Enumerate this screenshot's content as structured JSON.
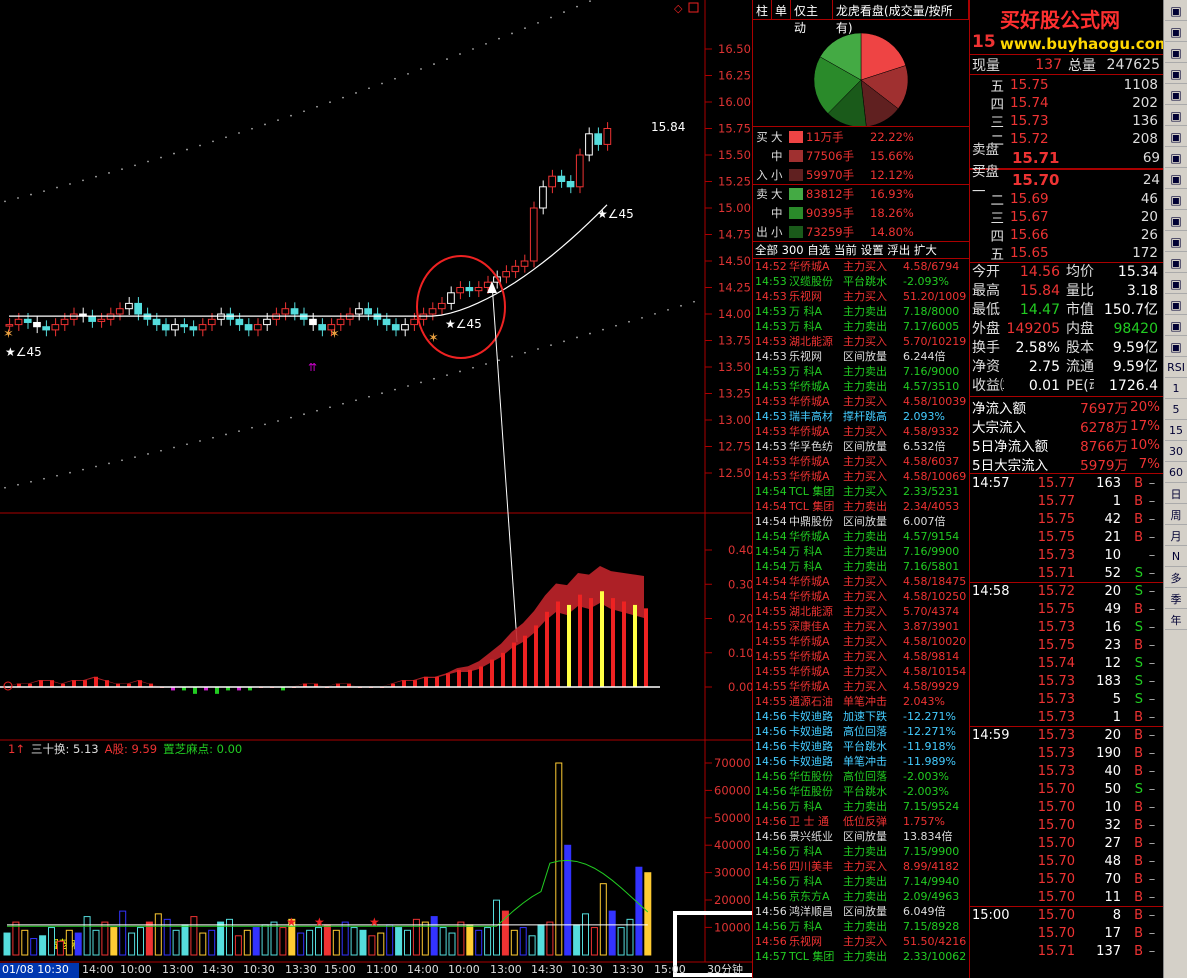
{
  "chart": {
    "price_axis": [
      "16.50",
      "16.25",
      "16.00",
      "15.75",
      "15.50",
      "15.25",
      "15.00",
      "14.75",
      "14.50",
      "14.25",
      "14.00",
      "13.75",
      "13.50",
      "13.25",
      "13.00",
      "12.75",
      "12.50"
    ],
    "macd_axis": [
      "0.40",
      "0.30",
      "0.20",
      "0.10",
      "0.00"
    ],
    "vol_axis": [
      "70000",
      "60000",
      "50000",
      "40000",
      "30000",
      "20000",
      "10000"
    ],
    "last_price_label": "15.84",
    "annotations": [
      "★∠45",
      "★∠45",
      "★∠45"
    ],
    "indicator_line": {
      "prefix": "1↑",
      "a": "三十换: 5.13",
      "b": "A股: 9.59",
      "c": "置芝麻点: 0.00",
      "overlay": "置芝麻"
    },
    "time_axis": [
      "01/08 10:30",
      "14:00",
      "10:00",
      "13:00",
      "14:30",
      "10:30",
      "13:30",
      "15:00",
      "11:00",
      "14:00",
      "10:00",
      "13:00",
      "14:30",
      "10:30",
      "13:30",
      "15:00"
    ],
    "period": "30分钟",
    "macd_values": [
      0.0,
      0.01,
      0.01,
      0.02,
      0.02,
      0.01,
      0.02,
      0.02,
      0.03,
      0.02,
      0.01,
      0.01,
      0.02,
      0.01,
      0.0,
      -0.01,
      -0.01,
      -0.02,
      -0.01,
      -0.02,
      -0.01,
      -0.01,
      -0.01,
      0.0,
      0.0,
      -0.01,
      0.0,
      0.01,
      0.01,
      0.0,
      0.01,
      0.01,
      0.0,
      0.0,
      0.0,
      0.01,
      0.02,
      0.02,
      0.03,
      0.03,
      0.04,
      0.05,
      0.05,
      0.06,
      0.08,
      0.1,
      0.13,
      0.15,
      0.18,
      0.22,
      0.25,
      0.24,
      0.27,
      0.26,
      0.28,
      0.26,
      0.25,
      0.24,
      0.23
    ],
    "vol_values": [
      8000,
      12000,
      9000,
      6000,
      7000,
      10000,
      5000,
      9000,
      8000,
      14000,
      9000,
      12000,
      10000,
      16000,
      8000,
      10000,
      12000,
      15000,
      13000,
      9000,
      11000,
      14000,
      8000,
      9000,
      12000,
      13000,
      7000,
      9000,
      10000,
      11000,
      12000,
      10000,
      13000,
      8000,
      9000,
      10000,
      11000,
      9000,
      12000,
      10000,
      9000,
      7000,
      8000,
      11000,
      10000,
      9000,
      13000,
      12000,
      14000,
      10000,
      8000,
      12000,
      11000,
      9000,
      10000,
      20000,
      16000,
      9000,
      10000,
      7000,
      11000,
      12000,
      70000,
      40000,
      11000,
      15000,
      10000,
      26000,
      16000,
      10000,
      13000,
      32000,
      30000
    ]
  },
  "panel": {
    "tabs": [
      "柱",
      "单",
      "仅主动",
      "龙虎看盘(成交量/按所有)"
    ],
    "flow": [
      {
        "side": "买",
        "size": "大",
        "amount": "11万手",
        "pct": "22.22%",
        "color": "#ee4444"
      },
      {
        "side": "",
        "size": "中",
        "amount": "77506手",
        "pct": "15.66%",
        "color": "#a03030"
      },
      {
        "side": "入",
        "size": "小",
        "amount": "59970手",
        "pct": "12.12%",
        "color": "#602020"
      },
      {
        "side": "卖",
        "size": "大",
        "amount": "83812手",
        "pct": "16.93%",
        "color": "#44aa44"
      },
      {
        "side": "",
        "size": "中",
        "amount": "90395手",
        "pct": "18.26%",
        "color": "#2a8a2a"
      },
      {
        "side": "出",
        "size": "小",
        "amount": "73259手",
        "pct": "14.80%",
        "color": "#1a5a1a"
      }
    ],
    "filter_tabs": "全部 300 自选 当前 设置 浮出 扩大",
    "news": [
      [
        "14:52",
        "华侨城A",
        "主力买入",
        "4.58/6794",
        "r"
      ],
      [
        "14:53",
        "汉缆股份",
        "平台跳水",
        "-2.093%",
        "g"
      ],
      [
        "14:53",
        "乐视网",
        "主力买入",
        "51.20/1009",
        "r"
      ],
      [
        "14:53",
        "万  科A",
        "主力卖出",
        "7.18/8000",
        "g"
      ],
      [
        "14:53",
        "万  科A",
        "主力卖出",
        "7.17/6005",
        "g"
      ],
      [
        "14:53",
        "湖北能源",
        "主力买入",
        "5.70/10219",
        "r"
      ],
      [
        "14:53",
        "乐视网",
        "区间放量",
        "6.244倍",
        "w"
      ],
      [
        "14:53",
        "万  科A",
        "主力卖出",
        "7.16/9000",
        "g"
      ],
      [
        "14:53",
        "华侨城A",
        "主力卖出",
        "4.57/3510",
        "g"
      ],
      [
        "14:53",
        "华侨城A",
        "主力买入",
        "4.58/10039",
        "r"
      ],
      [
        "14:53",
        "瑞丰高材",
        "撑杆跳高",
        "2.093%",
        "c"
      ],
      [
        "14:53",
        "华侨城A",
        "主力买入",
        "4.58/9332",
        "r"
      ],
      [
        "14:53",
        "华孚色纺",
        "区间放量",
        "6.532倍",
        "w"
      ],
      [
        "14:53",
        "华侨城A",
        "主力买入",
        "4.58/6037",
        "r"
      ],
      [
        "14:53",
        "华侨城A",
        "主力买入",
        "4.58/10069",
        "r"
      ],
      [
        "14:54",
        "TCL 集团",
        "主力买入",
        "2.33/5231",
        "g"
      ],
      [
        "14:54",
        "TCL 集团",
        "主力卖出",
        "2.34/4053",
        "r"
      ],
      [
        "14:54",
        "中鼎股份",
        "区间放量",
        "6.007倍",
        "w"
      ],
      [
        "14:54",
        "华侨城A",
        "主力卖出",
        "4.57/9154",
        "g"
      ],
      [
        "14:54",
        "万  科A",
        "主力卖出",
        "7.16/9900",
        "g"
      ],
      [
        "14:54",
        "万  科A",
        "主力卖出",
        "7.16/5801",
        "g"
      ],
      [
        "14:54",
        "华侨城A",
        "主力买入",
        "4.58/18475",
        "r"
      ],
      [
        "14:54",
        "华侨城A",
        "主力买入",
        "4.58/10250",
        "r"
      ],
      [
        "14:55",
        "湖北能源",
        "主力买入",
        "5.70/4374",
        "r"
      ],
      [
        "14:55",
        "深康佳A",
        "主力买入",
        "3.87/3901",
        "r"
      ],
      [
        "14:55",
        "华侨城A",
        "主力买入",
        "4.58/10020",
        "r"
      ],
      [
        "14:55",
        "华侨城A",
        "主力买入",
        "4.58/9814",
        "r"
      ],
      [
        "14:55",
        "华侨城A",
        "主力买入",
        "4.58/10154",
        "r"
      ],
      [
        "14:55",
        "华侨城A",
        "主力买入",
        "4.58/9929",
        "r"
      ],
      [
        "14:55",
        "通源石油",
        "单笔冲击",
        "2.043%",
        "r"
      ],
      [
        "14:56",
        "卡奴迪路",
        "加速下跌",
        "-12.271%",
        "c"
      ],
      [
        "14:56",
        "卡奴迪路",
        "高位回落",
        "-12.271%",
        "c"
      ],
      [
        "14:56",
        "卡奴迪路",
        "平台跳水",
        "-11.918%",
        "c"
      ],
      [
        "14:56",
        "卡奴迪路",
        "单笔冲击",
        "-11.989%",
        "c"
      ],
      [
        "14:56",
        "华伍股份",
        "高位回落",
        "-2.003%",
        "g"
      ],
      [
        "14:56",
        "华伍股份",
        "平台跳水",
        "-2.003%",
        "g"
      ],
      [
        "14:56",
        "万  科A",
        "主力卖出",
        "7.15/9524",
        "g"
      ],
      [
        "14:56",
        "卫 士 通",
        "低位反弹",
        "1.757%",
        "r"
      ],
      [
        "14:56",
        "景兴纸业",
        "区间放量",
        "13.834倍",
        "w"
      ],
      [
        "14:56",
        "万  科A",
        "主力卖出",
        "7.15/9900",
        "g"
      ],
      [
        "14:56",
        "四川美丰",
        "主力买入",
        "8.99/4182",
        "r"
      ],
      [
        "14:56",
        "万  科A",
        "主力卖出",
        "7.14/9940",
        "g"
      ],
      [
        "14:56",
        "京东方A",
        "主力卖出",
        "2.09/4963",
        "g"
      ],
      [
        "14:56",
        "鸿洋顺昌",
        "区间放量",
        "6.049倍",
        "w"
      ],
      [
        "14:56",
        "万  科A",
        "主力卖出",
        "7.15/8928",
        "g"
      ],
      [
        "14:56",
        "乐视网",
        "主力买入",
        "51.50/4216",
        "r"
      ],
      [
        "14:57",
        "TCL 集团",
        "主力卖出",
        "2.33/10062",
        "g"
      ]
    ]
  },
  "quote": {
    "code_fragment": "15",
    "watermark": "买好股公式网",
    "watermark_url": "www.buyhaogu.com",
    "now_label": "现量",
    "now_val": "137",
    "total_label": "总量",
    "total_val": "247625",
    "asks": [
      [
        "五",
        "15.75",
        "1108"
      ],
      [
        "四",
        "15.74",
        "202"
      ],
      [
        "三",
        "15.73",
        "136"
      ],
      [
        "二",
        "15.72",
        "208"
      ],
      [
        "卖盘 一",
        "15.71",
        "69"
      ]
    ],
    "bids": [
      [
        "买盘 一",
        "15.70",
        "24"
      ],
      [
        "二",
        "15.69",
        "46"
      ],
      [
        "三",
        "15.67",
        "20"
      ],
      [
        "四",
        "15.66",
        "26"
      ],
      [
        "五",
        "15.65",
        "172"
      ]
    ],
    "info": [
      [
        "今开",
        "14.56",
        "均价",
        "15.34"
      ],
      [
        "最高",
        "15.84",
        "量比",
        "3.18"
      ],
      [
        "最低",
        "14.47",
        "市值",
        "150.7亿"
      ],
      [
        "外盘",
        "149205",
        "内盘",
        "98420"
      ],
      [
        "换手",
        "2.58%",
        "股本",
        "9.59亿"
      ],
      [
        "净资",
        "2.75",
        "流通",
        "9.59亿"
      ],
      [
        "收益㈢",
        "0.01",
        "PE(动)",
        "1726.4"
      ]
    ],
    "flows": [
      [
        "净流入额",
        "7697万",
        "20%"
      ],
      [
        "大宗流入",
        "6278万",
        "17%"
      ],
      [
        "5日净流入额",
        "8766万",
        "10%"
      ],
      [
        "5日大宗流入",
        "5979万",
        "7%"
      ]
    ],
    "ticks": [
      [
        "14:57",
        "15.77",
        "163",
        "B"
      ],
      [
        "",
        "15.77",
        "1",
        "B"
      ],
      [
        "",
        "15.75",
        "42",
        "B"
      ],
      [
        "",
        "15.75",
        "21",
        "B"
      ],
      [
        "",
        "15.73",
        "10",
        ""
      ],
      [
        "",
        "15.71",
        "52",
        "S"
      ],
      [
        "14:58",
        "15.72",
        "20",
        "S"
      ],
      [
        "",
        "15.75",
        "49",
        "B"
      ],
      [
        "",
        "15.73",
        "16",
        "S"
      ],
      [
        "",
        "15.75",
        "23",
        "B"
      ],
      [
        "",
        "15.74",
        "12",
        "S"
      ],
      [
        "",
        "15.73",
        "183",
        "S"
      ],
      [
        "",
        "15.73",
        "5",
        "S"
      ],
      [
        "",
        "15.73",
        "1",
        "B"
      ],
      [
        "14:59",
        "15.73",
        "20",
        "B"
      ],
      [
        "",
        "15.73",
        "190",
        "B"
      ],
      [
        "",
        "15.73",
        "40",
        "B"
      ],
      [
        "",
        "15.70",
        "50",
        "S"
      ],
      [
        "",
        "15.70",
        "10",
        "B"
      ],
      [
        "",
        "15.70",
        "32",
        "B"
      ],
      [
        "",
        "15.70",
        "27",
        "B"
      ],
      [
        "",
        "15.70",
        "48",
        "B"
      ],
      [
        "",
        "15.70",
        "70",
        "B"
      ],
      [
        "",
        "15.70",
        "11",
        "B"
      ],
      [
        "15:00",
        "15.70",
        "8",
        "B"
      ],
      [
        "",
        "15.70",
        "17",
        "B"
      ],
      [
        "",
        "15.71",
        "137",
        "B"
      ]
    ]
  },
  "sidebar": [
    "RSI",
    "1",
    "5",
    "15",
    "30",
    "60",
    "日",
    "周",
    "月",
    "N",
    "多",
    "季",
    "年"
  ]
}
